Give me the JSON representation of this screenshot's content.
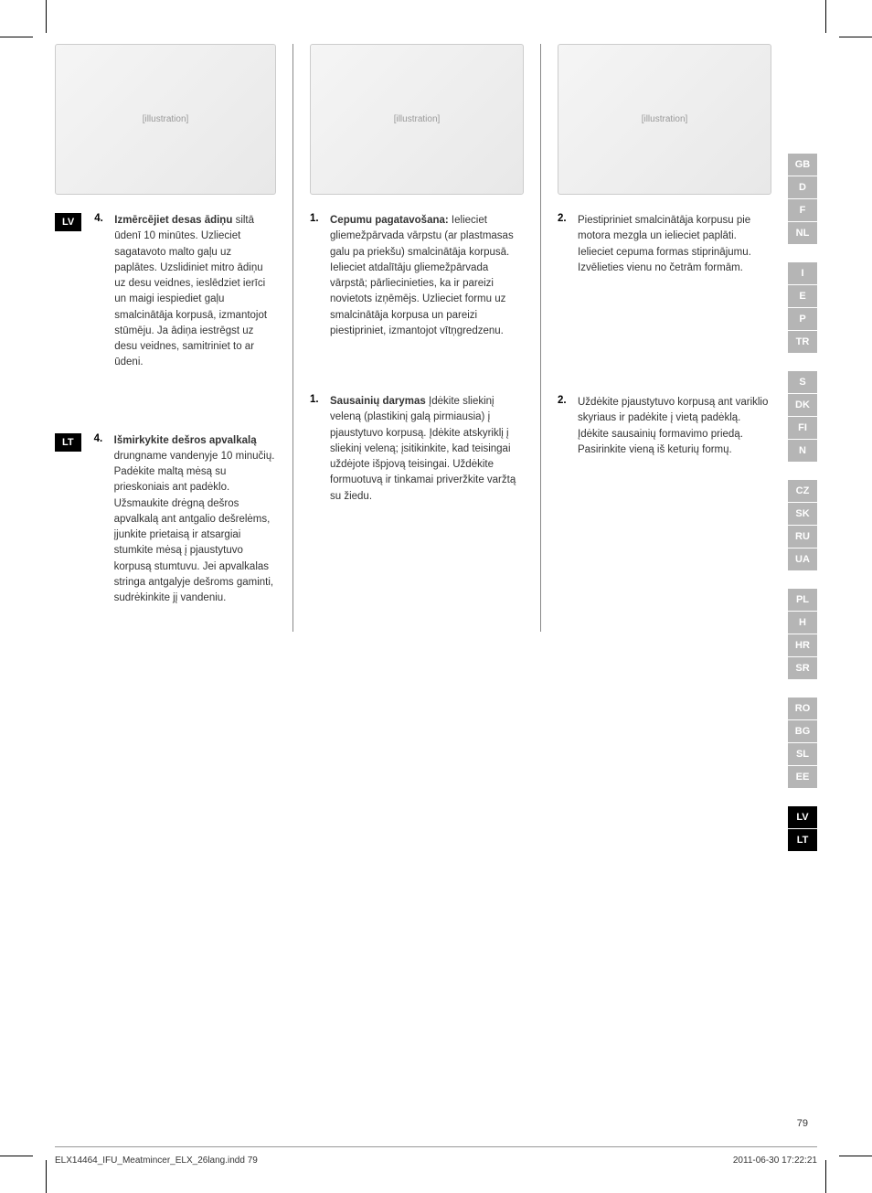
{
  "page_number": "79",
  "footer_left": "ELX14464_IFU_Meatmincer_ELX_26lang.indd   79",
  "footer_right": "2011-06-30   17:22:21",
  "left_col": {
    "lv_badge": "LV",
    "lv_num": "4.",
    "lv_title": "Izmērcējiet desas ādiņu",
    "lv_text": " siltā ūdenī 10 minūtes. Uzlieciet sagatavoto malto gaļu uz paplātes. Uzslidiniet mitro ādiņu uz desu veidnes, ieslēdziet ierīci un maigi iespiediet gaļu smalcinātāja korpusā, izmantojot stūmēju. Ja ādiņa iestrēgst uz desu veidnes, samitriniet to ar ūdeni.",
    "lt_badge": "LT",
    "lt_num": "4.",
    "lt_title": "Išmirkykite dešros apvalkalą",
    "lt_text": " drungname vandenyje 10 minučių. Padėkite maltą mėsą su prieskoniais ant padėklo. Užsmaukite drėgną dešros apvalkalą ant antgalio dešrelėms, įjunkite prietaisą ir atsargiai stumkite mėsą į pjaustytuvo korpusą stumtuvu. Jei apvalkalas stringa antgalyje dešroms gaminti, sudrėkinkite jį vandeniu."
  },
  "mid_col": {
    "step1_num": "1.",
    "step1_title": "Cepumu pagatavošana:",
    "step1_text": " Ielieciet gliemežpārvada vārpstu (ar plastmasas galu pa priekšu) smalcinātāja korpusā. Ielieciet atdalītāju gliemežpārvada vārpstā; pārliecinieties, ka ir pareizi novietots izņēmējs. Uzlieciet formu uz smalcinātāja korpusa un pareizi piestipriniet, izmantojot vītņgredzenu.",
    "step2_num": "1.",
    "step2_title": "Sausainių darymas",
    "step2_text": " Įdėkite sliekinį veleną (plastikinį galą pirmiausia) į pjaustytuvo korpusą. Įdėkite atskyriklį į sliekinį veleną; įsitikinkite, kad teisingai uždėjote išpjovą teisingai. Uždėkite formuotuvą ir tinkamai priveržkite varžtą su žiedu."
  },
  "right_col": {
    "step1_num": "2.",
    "step1_text": "Piestipriniet smalcinātāja korpusu pie motora mezgla un ielieciet paplāti. Ielieciet cepuma formas stiprinājumu. Izvēlieties vienu no četrām formām.",
    "step2_num": "2.",
    "step2_text": "Uždėkite pjaustytuvo korpusą ant variklio skyriaus ir padėkite į vietą padėklą. Įdėkite sausainių formavimo priedą. Pasirinkite vieną iš keturių formų."
  },
  "sidebar": {
    "groups": [
      [
        "GB",
        "D",
        "F",
        "NL"
      ],
      [
        "I",
        "E",
        "P",
        "TR"
      ],
      [
        "S",
        "DK",
        "FI",
        "N"
      ],
      [
        "CZ",
        "SK",
        "RU",
        "UA"
      ],
      [
        "PL",
        "H",
        "HR",
        "SR"
      ],
      [
        "RO",
        "BG",
        "SL",
        "EE"
      ],
      [
        "LV",
        "LT"
      ]
    ],
    "active": [
      "LV",
      "LT"
    ]
  },
  "figures": {
    "f1": "[illustration]",
    "f2": "[illustration]",
    "f3": "[illustration]"
  }
}
